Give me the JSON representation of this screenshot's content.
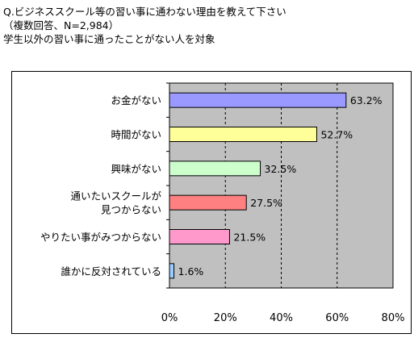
{
  "header": {
    "line1": "Q.ビジネススクール等の習い事に通わない理由を教えて下さい",
    "line2": "（複数回答、N=2,984）",
    "line3": "学生以外の習い事に通ったことがない人を対象"
  },
  "chart_data": {
    "type": "bar",
    "orientation": "horizontal",
    "categories": [
      [
        "お金がない"
      ],
      [
        "時間がない"
      ],
      [
        "興味がない"
      ],
      [
        "通いたいスクールが",
        "見つからない"
      ],
      [
        "やりたい事がみつからない"
      ],
      [
        "誰かに反対されている"
      ]
    ],
    "values": [
      63.2,
      52.7,
      32.5,
      27.5,
      21.5,
      1.6
    ],
    "value_labels": [
      "63.2%",
      "52.7%",
      "32.5%",
      "27.5%",
      "21.5%",
      "1.6%"
    ],
    "colors": [
      "#9999ff",
      "#ffff99",
      "#ccffcc",
      "#ff8080",
      "#ff99cc",
      "#99ccff"
    ],
    "xlim": [
      0,
      80
    ],
    "xticks": [
      0,
      20,
      40,
      60,
      80
    ],
    "xtick_labels": [
      "0%",
      "20%",
      "40%",
      "60%",
      "80%"
    ],
    "plot_background": "#c0c0c0",
    "grid": "dashed vertical"
  }
}
